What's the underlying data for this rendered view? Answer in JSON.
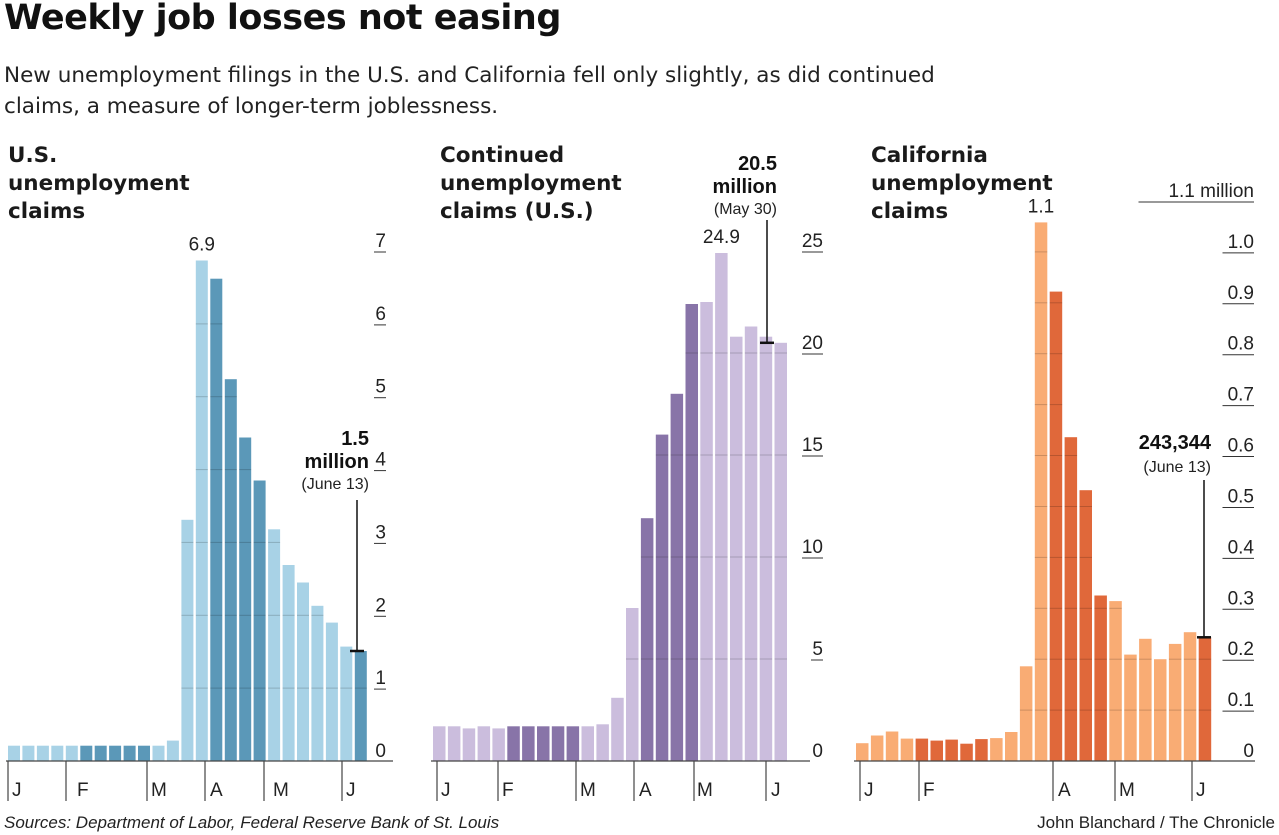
{
  "headline": "Weekly job losses not easing",
  "dek": "New unemployment filings in the U.S. and California fell only slightly, as did continued claims, a measure of longer-term joblessness.",
  "footer": {
    "sources": "Sources: Department of Labor, Federal Reserve Bank of St. Louis",
    "credit": "John Blanchard / The Chronicle"
  },
  "chart_data": [
    {
      "type": "bar",
      "title": "U.S.\nunemployment\nclaims",
      "month_labels": [
        "J",
        "F",
        "M",
        "A",
        "M",
        "J"
      ],
      "y_ticks": [
        "0",
        "1",
        "2",
        "3",
        "4",
        "5",
        "6",
        "7"
      ],
      "ylim": [
        0,
        7
      ],
      "grid": true,
      "peak_label": "6.9",
      "callout": {
        "value": "1.5",
        "unit": "million",
        "date": "(June 13)"
      },
      "values": [
        0.21,
        0.21,
        0.21,
        0.21,
        0.21,
        0.21,
        0.21,
        0.21,
        0.21,
        0.21,
        0.21,
        0.28,
        3.31,
        6.87,
        6.62,
        5.24,
        4.44,
        3.85,
        3.18,
        2.69,
        2.45,
        2.13,
        1.9,
        1.57,
        1.51
      ],
      "highlight_weeks": [
        5,
        6,
        7,
        8,
        9,
        14,
        15,
        16,
        17,
        24
      ],
      "colors": {
        "light": "#a8d2e6",
        "dark": "#5b98b8"
      }
    },
    {
      "type": "bar",
      "title": "Continued\nunemployment\nclaims (U.S.)",
      "month_labels": [
        "J",
        "F",
        "M",
        "A",
        "M",
        "J"
      ],
      "y_ticks": [
        "0",
        "5",
        "10",
        "15",
        "20",
        "25"
      ],
      "ylim": [
        0,
        25
      ],
      "grid": true,
      "peak_label": "24.9",
      "callout": {
        "value": "20.5",
        "unit": "million",
        "date": "(May 30)"
      },
      "values": [
        1.7,
        1.7,
        1.6,
        1.7,
        1.6,
        1.7,
        1.7,
        1.7,
        1.7,
        1.7,
        1.7,
        1.8,
        3.1,
        7.5,
        11.9,
        16.0,
        18.0,
        22.4,
        22.5,
        24.9,
        20.8,
        21.3,
        20.8,
        20.5
      ],
      "highlight_weeks": [
        5,
        6,
        7,
        8,
        9,
        14,
        15,
        16,
        17
      ],
      "colors": {
        "light": "#cbbddd",
        "dark": "#8874a8"
      }
    },
    {
      "type": "bar",
      "title": "California\nunemployment\nclaims",
      "month_labels": [
        "J",
        "F",
        "M",
        "A",
        "M",
        "J"
      ],
      "y_ticks": [
        "0",
        "0.1",
        "0.2",
        "0.3",
        "0.4",
        "0.5",
        "0.6",
        "0.7",
        "0.8",
        "0.9",
        "1.0",
        "1.1 million"
      ],
      "ylim": [
        0,
        1.1
      ],
      "grid": true,
      "peak_label": "1.1",
      "callout": {
        "value": "243,344",
        "unit": "",
        "date": "(June 13)"
      },
      "values": [
        0.035,
        0.05,
        0.058,
        0.044,
        0.044,
        0.04,
        0.042,
        0.034,
        0.043,
        0.045,
        0.057,
        0.186,
        1.058,
        0.922,
        0.636,
        0.532,
        0.325,
        0.314,
        0.209,
        0.24,
        0.2,
        0.23,
        0.253,
        0.243
      ],
      "highlight_weeks": [
        4,
        5,
        6,
        7,
        8,
        13,
        14,
        15,
        16,
        23
      ],
      "colors": {
        "light": "#f9ac74",
        "dark": "#e0683a"
      }
    }
  ]
}
